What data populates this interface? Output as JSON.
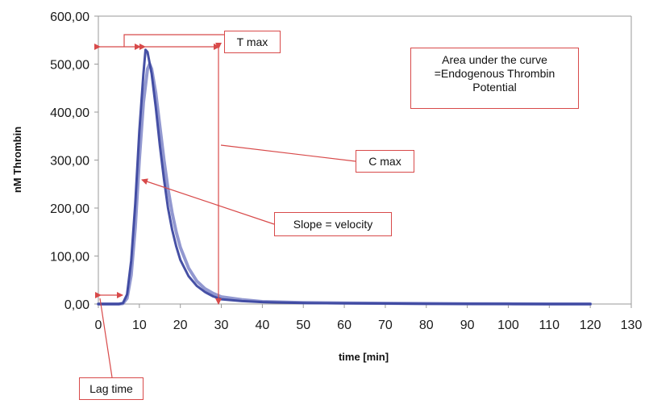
{
  "chart_data": {
    "type": "line",
    "xlabel": "time [min]",
    "ylabel": "nM Thrombin",
    "xlim": [
      0,
      130
    ],
    "ylim": [
      0,
      600
    ],
    "x_ticks": [
      "0",
      "10",
      "20",
      "30",
      "40",
      "50",
      "60",
      "70",
      "80",
      "90",
      "100",
      "110",
      "120",
      "130"
    ],
    "y_ticks": [
      "0,00",
      "100,00",
      "200,00",
      "300,00",
      "400,00",
      "500,00",
      "600,00"
    ],
    "grid": false,
    "series": [
      {
        "x": [
          0,
          5,
          6,
          7,
          8,
          9,
          10,
          11,
          11.5,
          12,
          13,
          14,
          15,
          16,
          17,
          18,
          19,
          20,
          22,
          24,
          26,
          28,
          30,
          35,
          40,
          50,
          60,
          70,
          80,
          90,
          100,
          110,
          120
        ],
        "y": [
          0,
          0,
          2,
          20,
          90,
          210,
          360,
          480,
          530,
          525,
          480,
          410,
          330,
          260,
          200,
          155,
          120,
          92,
          58,
          38,
          25,
          16,
          10,
          6,
          4,
          2,
          1.5,
          1,
          0.5,
          0.3,
          0.2,
          0,
          0
        ]
      },
      {
        "x": [
          0,
          5,
          6,
          7,
          8,
          9,
          10,
          11,
          12,
          12.5,
          13,
          14,
          15,
          16,
          17,
          18,
          19,
          20,
          22,
          24,
          26,
          28,
          30,
          35,
          40,
          50,
          60,
          70,
          80,
          90,
          100,
          110,
          120
        ],
        "y": [
          0,
          0,
          1,
          12,
          60,
          160,
          300,
          420,
          490,
          500,
          490,
          440,
          370,
          300,
          240,
          190,
          150,
          118,
          75,
          48,
          32,
          22,
          15,
          9,
          5,
          3,
          2,
          1.5,
          1,
          0.5,
          0.3,
          0,
          0
        ]
      }
    ]
  },
  "annotations": {
    "t_max": "T max",
    "auc": [
      "Area under the curve",
      "=Endogenous Thrombin",
      "Potential"
    ],
    "c_max": "C max",
    "slope": "Slope = velocity",
    "lag_time": "Lag time"
  },
  "colors": {
    "series_dark": "#3c47a0",
    "series_light": "#7f86c8",
    "annotation": "#d84a4a",
    "axis": "#9a9a9a"
  }
}
